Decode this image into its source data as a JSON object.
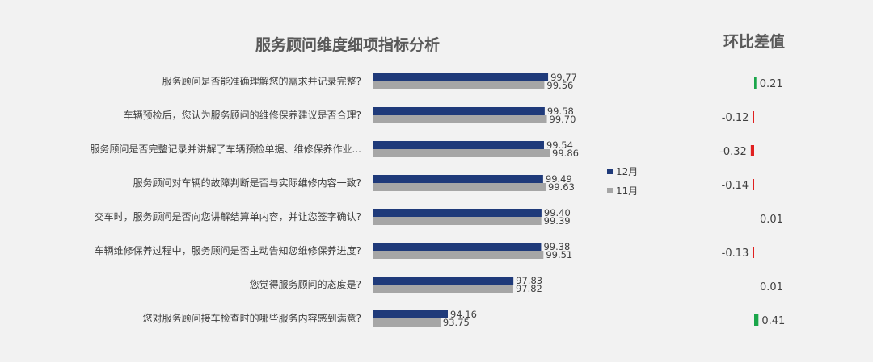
{
  "left_title": "服务顾问维度细项指标分析",
  "right_title": "环比差值",
  "colors": {
    "series_12": "#1f3a7a",
    "series_11": "#a6a6a6",
    "pos": "#1aa64a",
    "neg": "#e02020"
  },
  "chart_data": [
    {
      "type": "bar",
      "orientation": "horizontal",
      "title": "服务顾问维度细项指标分析",
      "categories": [
        "服务顾问是否能准确理解您的需求并记录完整?",
        "车辆预检后，您认为服务顾问的维修保养建议是否合理?",
        "服务顾问是否完整记录并讲解了车辆预检单据、维修保养作业...",
        "服务顾问对车辆的故障判断是否与实际维修内容一致?",
        "交车时，服务顾问是否向您讲解结算单内容，并让您签字确认?",
        "车辆维修保养过程中，服务顾问是否主动告知您维修保养进度?",
        "您觉得服务顾问的态度是?",
        "您对服务顾问接车检查时的哪些服务内容感到满意?"
      ],
      "series": [
        {
          "name": "12月",
          "values": [
            99.77,
            99.58,
            99.54,
            99.49,
            99.4,
            99.38,
            97.83,
            94.16
          ],
          "labels": [
            "99.77",
            "99.58",
            "99.54",
            "99.49",
            "99.40",
            "99.38",
            "97.83",
            "94.16"
          ]
        },
        {
          "name": "11月",
          "values": [
            99.56,
            99.7,
            99.86,
            99.63,
            99.39,
            99.51,
            97.82,
            93.75
          ],
          "labels": [
            "99.56",
            "99.70",
            "99.86",
            "99.63",
            "99.39",
            "99.51",
            "97.82",
            "93.75"
          ]
        }
      ],
      "xlim": [
        90,
        100.4
      ],
      "legend": "right"
    },
    {
      "type": "bar",
      "orientation": "horizontal",
      "title": "环比差值",
      "values": [
        0.21,
        -0.12,
        -0.32,
        -0.14,
        0.01,
        -0.13,
        0.01,
        0.41
      ],
      "labels": [
        "0.21",
        "-0.12",
        "-0.32",
        "-0.14",
        "0.01",
        "-0.13",
        "0.01",
        "0.41"
      ]
    }
  ]
}
